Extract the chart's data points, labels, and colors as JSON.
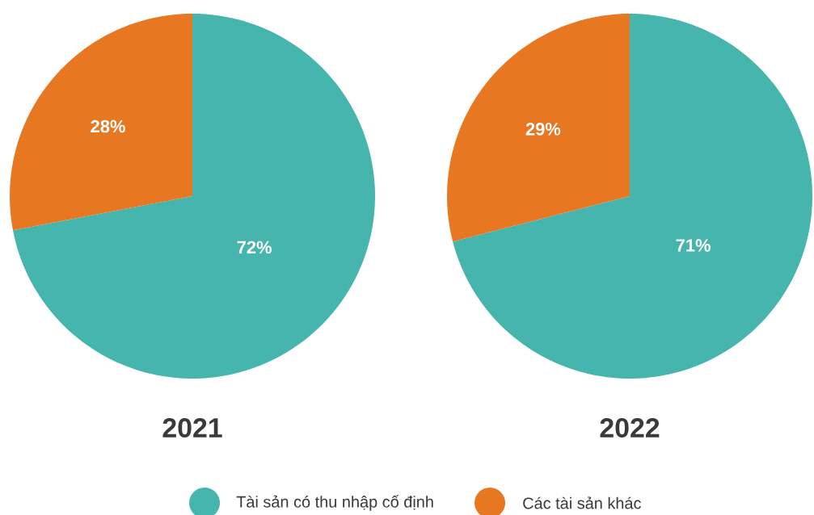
{
  "chart_data": [
    {
      "type": "pie",
      "title": "2021",
      "categories": [
        "Tài sản có thu nhập cố định",
        "Các tài sản khác"
      ],
      "values": [
        72,
        28
      ],
      "value_labels": [
        "72%",
        "28%"
      ],
      "colors": [
        "#46b5ad",
        "#e87722"
      ],
      "legend": "bottom"
    },
    {
      "type": "pie",
      "title": "2022",
      "categories": [
        null,
        null
      ],
      "values": [
        71,
        29
      ],
      "value_labels": [
        "71%",
        "29%"
      ],
      "colors": [
        "#46b5ad",
        "#e87722"
      ]
    }
  ]
}
